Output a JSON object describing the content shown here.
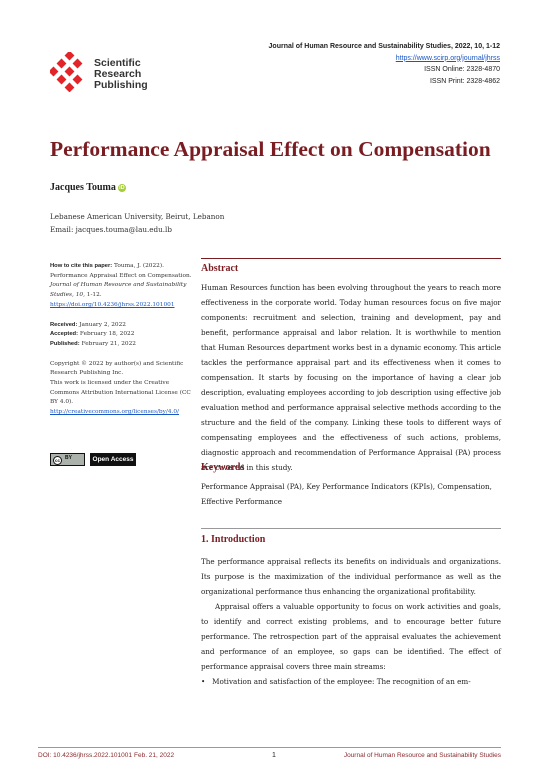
{
  "publisher": {
    "logo_lines": [
      "Scientific",
      "Research",
      "Publishing"
    ],
    "logo_color": "#e0262b"
  },
  "journal_header": {
    "title_line": "Journal of Human Resource and Sustainability Studies, 2022, 10, 1-12",
    "url": "https://www.scirp.org/journal/jhrss",
    "issn_online": "ISSN Online: 2328-4870",
    "issn_print": "ISSN Print: 2328-4862"
  },
  "paper": {
    "title": "Performance Appraisal Effect on Compensation",
    "author": "Jacques Touma",
    "orcid_glyph": "iD",
    "affiliation": "Lebanese American University, Beirut, Lebanon",
    "email": "Email: jacques.touma@lau.edu.lb"
  },
  "sidebar": {
    "cite_label": "How to cite this paper:",
    "cite_text_a": "Touma, J. (2022). Performance Appraisal Effect on Compensation.",
    "cite_journal": "Journal of Human Resource and Sustainability Studies, 10,",
    "cite_pages": "1-12.",
    "cite_doi": "https://doi.org/10.4236/jhrss.2022.101001",
    "received_label": "Received:",
    "received": "January 2, 2022",
    "accepted_label": "Accepted:",
    "accepted": "February 18, 2022",
    "published_label": "Published:",
    "published": "February 21, 2022",
    "copyright": "Copyright © 2022 by author(s) and Scientific Research Publishing Inc.",
    "license": "This work is licensed under the Creative Commons Attribution International License (CC BY 4.0).",
    "license_url": "http://creativecommons.org/licenses/by/4.0/",
    "cc_glyph": "cc",
    "cc_by": "BY",
    "open_access": "Open Access"
  },
  "abstract": {
    "heading": "Abstract",
    "text": "Human Resources function has been evolving throughout the years to reach more effectiveness in the corporate world. Today human resources focus on five major components: recruitment and selection, training and development, pay and benefit, performance appraisal and labor relation. It is worthwhile to mention that Human Resources department works best in a dynamic economy. This article tackles the performance appraisal part and its effectiveness when it comes to compensation. It starts by focusing on the importance of having a clear job description, evaluating employees according to job description using effective job evaluation method and performance appraisal selective methods according to the structure and the field of the company. Linking these tools to different ways of compensating employees and the effectiveness of such actions, problems, diagnostic approach and recommendation of Performance Appraisal (PA) process are covered in this study."
  },
  "keywords": {
    "heading": "Keywords",
    "text": "Performance Appraisal (PA), Key Performance Indicators (KPIs), Compensation, Effective Performance"
  },
  "introduction": {
    "heading": "1. Introduction",
    "p1": "The performance appraisal reflects its benefits on individuals and organizations. Its purpose is the maximization of the individual performance as well as the organizational performance thus enhancing the organizational profitability.",
    "p2": "Appraisal offers a valuable opportunity to focus on work activities and goals, to identify and correct existing problems, and to encourage better future performance. The retrospection part of the appraisal evaluates the achievement and performance of an employee, so gaps can be identified. The effect of performance appraisal covers three main streams:",
    "bullet_glyph": "•",
    "bullet1": "Motivation and satisfaction of the employee: The recognition of an em-"
  },
  "footer": {
    "doi": "DOI: 10.4236/jhrss.2022.101001",
    "date": "Feb. 21, 2022",
    "page": "1",
    "journal": "Journal of Human Resource and Sustainability Studies"
  }
}
